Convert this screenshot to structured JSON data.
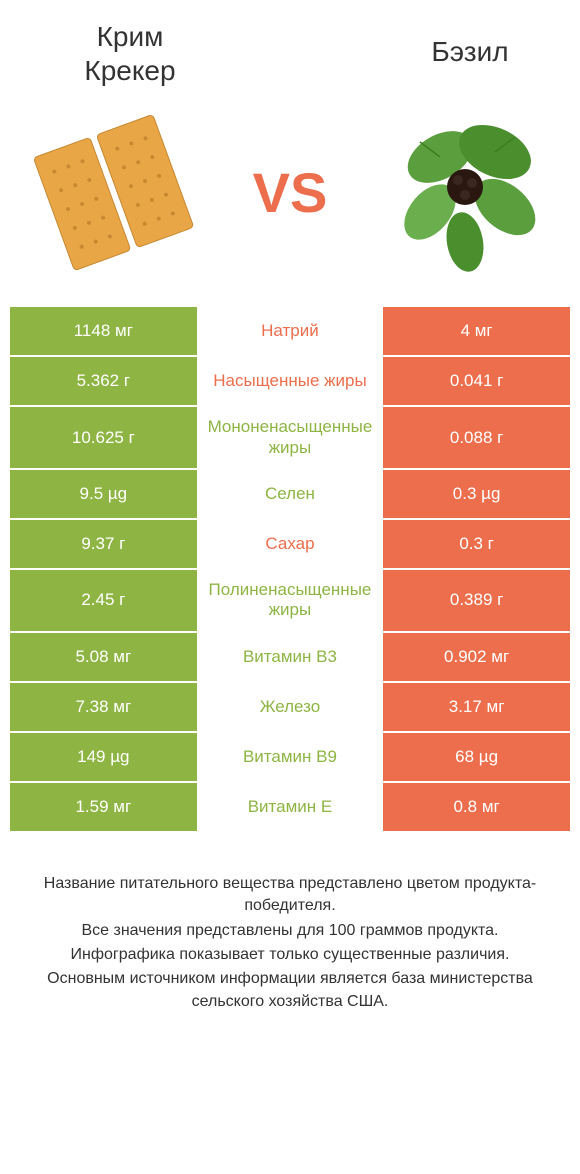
{
  "header": {
    "left_title": "Крим\nКрекер",
    "right_title": "Бэзил",
    "vs_text": "VS"
  },
  "colors": {
    "left": "#8eb543",
    "right": "#ec6e4c",
    "background": "#ffffff"
  },
  "rows": [
    {
      "left": "1148 мг",
      "label": "Натрий",
      "right": "4 мг",
      "winner": "left"
    },
    {
      "left": "5.362 г",
      "label": "Насыщенные жиры",
      "right": "0.041 г",
      "winner": "left"
    },
    {
      "left": "10.625 г",
      "label": "Мононенасыщенные жиры",
      "right": "0.088 г",
      "winner": "right"
    },
    {
      "left": "9.5 µg",
      "label": "Селен",
      "right": "0.3 µg",
      "winner": "right"
    },
    {
      "left": "9.37 г",
      "label": "Сахар",
      "right": "0.3 г",
      "winner": "left"
    },
    {
      "left": "2.45 г",
      "label": "Полиненасыщенные жиры",
      "right": "0.389 г",
      "winner": "right"
    },
    {
      "left": "5.08 мг",
      "label": "Витамин B3",
      "right": "0.902 мг",
      "winner": "right"
    },
    {
      "left": "7.38 мг",
      "label": "Железо",
      "right": "3.17 мг",
      "winner": "right"
    },
    {
      "left": "149 µg",
      "label": "Витамин B9",
      "right": "68 µg",
      "winner": "right"
    },
    {
      "left": "1.59 мг",
      "label": "Витамин E",
      "right": "0.8 мг",
      "winner": "right"
    }
  ],
  "footer": {
    "line1": "Название питательного вещества представлено цветом продукта-победителя.",
    "line2": "Все значения представлены для 100 граммов продукта.",
    "line3": "Инфографика показывает только существенные различия.",
    "line4": "Основным источником информации является база министерства сельского хозяйства США."
  }
}
